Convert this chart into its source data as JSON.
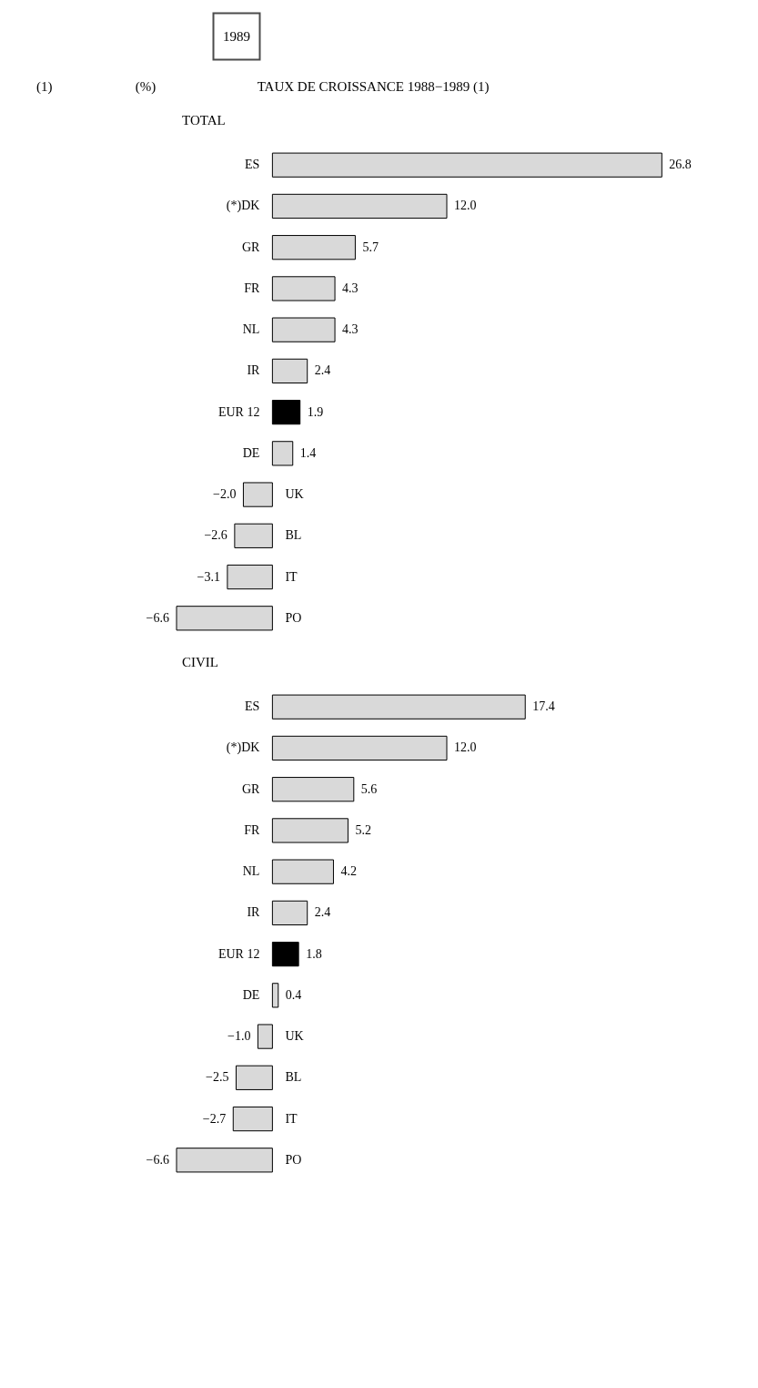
{
  "chart_data": [
    {
      "type": "bar",
      "orientation": "horizontal",
      "title": "TOTAL",
      "annotations": [
        "1989",
        "(1)",
        "(%)",
        "TAUX DE CROISSANCE 1988−1989 (1)"
      ],
      "categories": [
        "ES",
        "(*)DK",
        "GR",
        "FR",
        "NL",
        "IR",
        "EUR 12",
        "DE",
        "UK",
        "BL",
        "IT",
        "PO"
      ],
      "values": [
        26.8,
        12.0,
        5.7,
        4.3,
        4.3,
        2.4,
        1.9,
        1.4,
        -2.0,
        -2.6,
        -3.1,
        -6.6
      ],
      "colors": [
        "#d9d9d9",
        "#d9d9d9",
        "#d9d9d9",
        "#d9d9d9",
        "#d9d9d9",
        "#d9d9d9",
        "#000000",
        "#d9d9d9",
        "#d9d9d9",
        "#d9d9d9",
        "#d9d9d9",
        "#d9d9d9"
      ],
      "value_labels": [
        "26.8",
        "12.0",
        "5.7",
        "4.3",
        "4.3",
        "2.4",
        "1.9",
        "1.4",
        "−2.0",
        "−2.6",
        "−3.1",
        "−6.6"
      ]
    },
    {
      "type": "bar",
      "orientation": "horizontal",
      "title": "CIVIL",
      "categories": [
        "ES",
        "(*)DK",
        "GR",
        "FR",
        "NL",
        "IR",
        "EUR 12",
        "DE",
        "UK",
        "BL",
        "IT",
        "PO"
      ],
      "values": [
        17.4,
        12.0,
        5.6,
        5.2,
        4.2,
        2.4,
        1.8,
        0.4,
        -1.0,
        -2.5,
        -2.7,
        -6.6
      ],
      "colors": [
        "#d9d9d9",
        "#d9d9d9",
        "#d9d9d9",
        "#d9d9d9",
        "#d9d9d9",
        "#d9d9d9",
        "#000000",
        "#d9d9d9",
        "#d9d9d9",
        "#d9d9d9",
        "#d9d9d9",
        "#d9d9d9"
      ],
      "value_labels": [
        "17.4",
        "12.0",
        "5.6",
        "5.2",
        "4.2",
        "2.4",
        "1.8",
        "0.4",
        "−1.0",
        "−2.5",
        "−2.7",
        "−6.6"
      ]
    }
  ]
}
